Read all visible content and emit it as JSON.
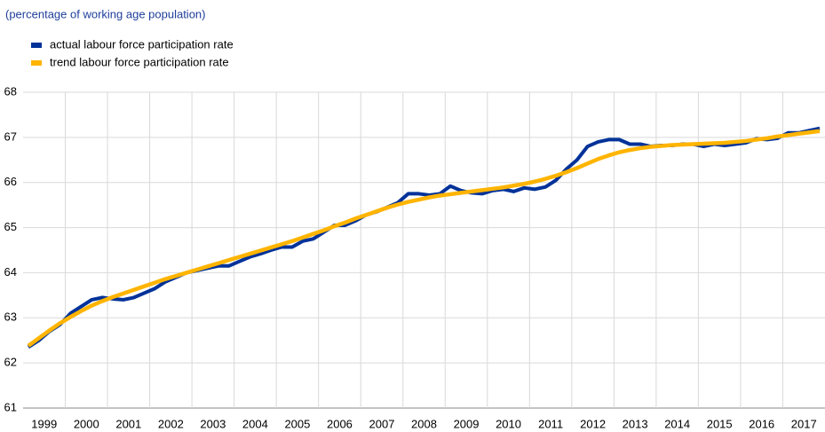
{
  "chart_data": {
    "type": "line",
    "subtitle": "(percentage of working age population)",
    "categories": [
      "1999",
      null,
      null,
      null,
      "2000",
      null,
      null,
      null,
      "2001",
      null,
      null,
      null,
      "2002",
      null,
      null,
      null,
      "2003",
      null,
      null,
      null,
      "2004",
      null,
      null,
      null,
      "2005",
      null,
      null,
      null,
      "2006",
      null,
      null,
      null,
      "2007",
      null,
      null,
      null,
      "2008",
      null,
      null,
      null,
      "2009",
      null,
      null,
      null,
      "2010",
      null,
      null,
      null,
      "2011",
      null,
      null,
      null,
      "2012",
      null,
      null,
      null,
      "2013",
      null,
      null,
      null,
      "2014",
      null,
      null,
      null,
      "2015",
      null,
      null,
      null,
      "2016",
      null,
      null,
      null,
      "2017",
      null,
      null,
      null
    ],
    "series": [
      {
        "name": "actual labour force participation rate",
        "color": "#003299",
        "values": [
          62.35,
          62.5,
          62.7,
          62.85,
          63.1,
          63.25,
          63.4,
          63.45,
          63.42,
          63.4,
          63.45,
          63.55,
          63.65,
          63.8,
          63.9,
          64.0,
          64.05,
          64.1,
          64.15,
          64.15,
          64.25,
          64.35,
          64.42,
          64.5,
          64.57,
          64.57,
          64.7,
          64.75,
          64.9,
          65.05,
          65.05,
          65.15,
          65.28,
          65.35,
          65.45,
          65.55,
          65.75,
          65.75,
          65.72,
          65.75,
          65.92,
          65.82,
          65.77,
          65.75,
          65.82,
          65.85,
          65.8,
          65.88,
          65.85,
          65.9,
          66.05,
          66.3,
          66.5,
          66.8,
          66.9,
          66.95,
          66.95,
          66.85,
          66.85,
          66.8,
          66.82,
          66.82,
          66.85,
          66.85,
          66.8,
          66.85,
          66.82,
          66.85,
          66.88,
          66.97,
          66.95,
          66.98,
          67.1,
          67.1,
          67.15,
          67.2
        ]
      },
      {
        "name": "trend labour force participation rate",
        "color": "#ffb400",
        "values": [
          62.38,
          62.55,
          62.72,
          62.88,
          63.02,
          63.15,
          63.27,
          63.37,
          63.46,
          63.54,
          63.62,
          63.7,
          63.78,
          63.86,
          63.93,
          64.0,
          64.07,
          64.14,
          64.21,
          64.28,
          64.35,
          64.42,
          64.49,
          64.56,
          64.63,
          64.7,
          64.78,
          64.86,
          64.94,
          65.03,
          65.11,
          65.2,
          65.28,
          65.36,
          65.44,
          65.51,
          65.57,
          65.62,
          65.67,
          65.71,
          65.74,
          65.77,
          65.8,
          65.83,
          65.86,
          65.89,
          65.93,
          65.97,
          66.02,
          66.08,
          66.15,
          66.23,
          66.32,
          66.42,
          66.52,
          66.6,
          66.67,
          66.72,
          66.76,
          66.79,
          66.81,
          66.83,
          66.84,
          66.85,
          66.86,
          66.87,
          66.88,
          66.9,
          66.92,
          66.95,
          66.98,
          67.02,
          67.05,
          67.08,
          67.11,
          67.14
        ]
      }
    ],
    "ylim": [
      61,
      68
    ],
    "yticks": [
      61,
      62,
      63,
      64,
      65,
      66,
      67,
      68
    ],
    "grid": true
  }
}
